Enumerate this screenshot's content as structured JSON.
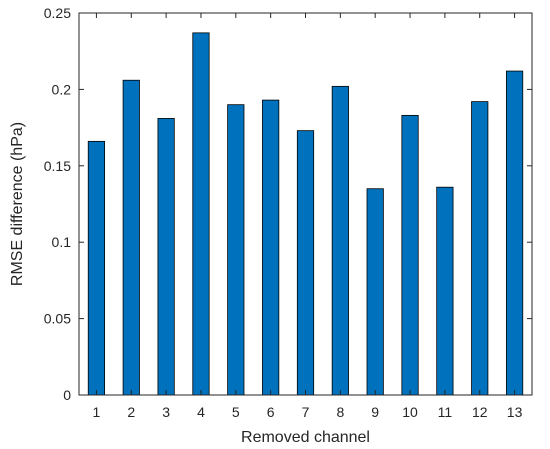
{
  "chart_data": {
    "type": "bar",
    "xlabel": "Removed channel",
    "ylabel": "RMSE difference (hPa)",
    "ylim": [
      0,
      0.25
    ],
    "categories": [
      "1",
      "2",
      "3",
      "4",
      "5",
      "6",
      "7",
      "8",
      "9",
      "10",
      "11",
      "12",
      "13"
    ],
    "values": [
      0.166,
      0.206,
      0.181,
      0.237,
      0.19,
      0.193,
      0.173,
      0.202,
      0.135,
      0.183,
      0.136,
      0.192,
      0.212
    ],
    "yticks": [
      0,
      0.05,
      0.1,
      0.15,
      0.2,
      0.25
    ],
    "ytick_labels": [
      "0",
      "0.05",
      "0.1",
      "0.15",
      "0.2",
      "0.25"
    ],
    "bar_color": "#0072BD",
    "grid": false,
    "legend": "none"
  }
}
